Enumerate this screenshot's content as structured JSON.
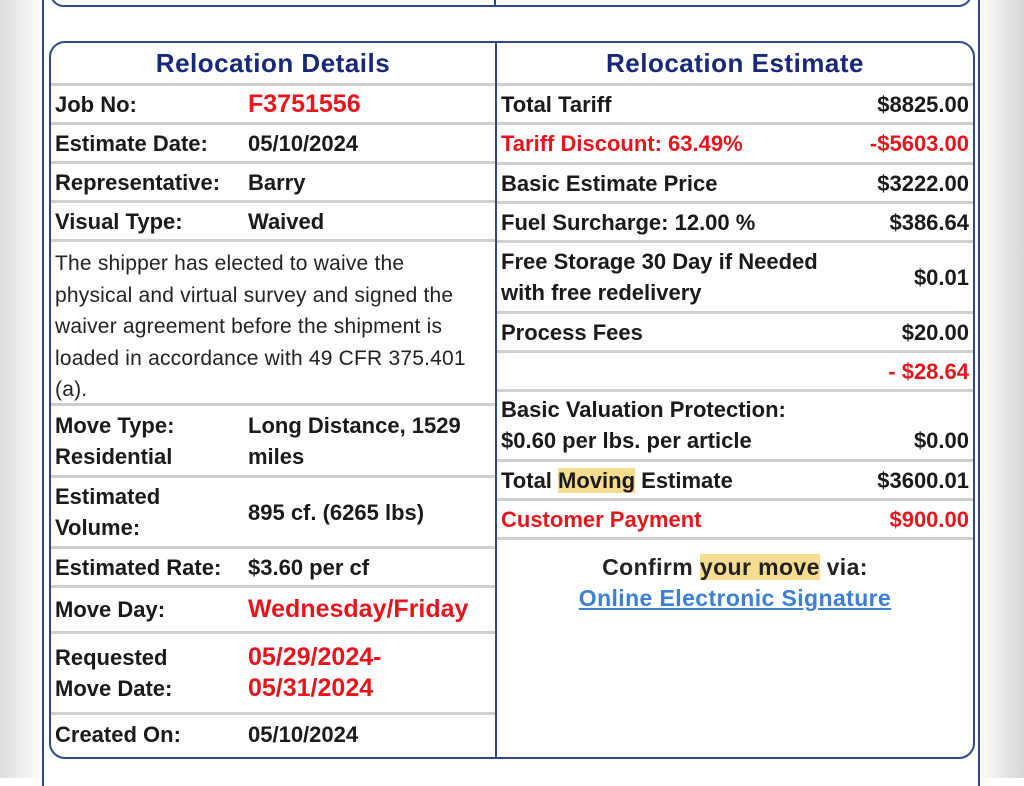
{
  "details": {
    "heading": "Relocation Details",
    "job_no_label": "Job No:",
    "job_no": "F3751556",
    "estimate_date_label": "Estimate Date:",
    "estimate_date": "05/10/2024",
    "representative_label": "Representative:",
    "representative": "Barry",
    "visual_type_label": "Visual Type:",
    "visual_type": "Waived",
    "waiver_note": "The shipper has elected to waive the physical and virtual survey and signed the waiver agreement before the shipment is loaded in accordance with 49 CFR 375.401 (a).",
    "move_type_label_1": "Move Type:",
    "move_type_label_2": "Residential",
    "move_type_value_1": "Long Distance, 1529",
    "move_type_value_2": "miles",
    "volume_label_1": "Estimated",
    "volume_label_2": "Volume:",
    "volume": "895 cf. (6265 lbs)",
    "rate_label": "Estimated Rate:",
    "rate": "$3.60 per cf",
    "move_day_label": "Move Day:",
    "move_day": "Wednesday/Friday",
    "requested_label_1": "Requested",
    "requested_label_2": "Move Date:",
    "requested_value_1": "05/29/2024-",
    "requested_value_2": "05/31/2024",
    "created_label": "Created On:",
    "created": "05/10/2024"
  },
  "estimate": {
    "heading": "Relocation Estimate",
    "total_tariff_label": "Total Tariff",
    "total_tariff": "$8825.00",
    "discount_label": "Tariff Discount: 63.49%",
    "discount": "-$5603.00",
    "basic_price_label": "Basic Estimate Price",
    "basic_price": "$3222.00",
    "fuel_label": "Fuel Surcharge: 12.00 %",
    "fuel": "$386.64",
    "storage_label_1": "Free Storage 30 Day if Needed",
    "storage_label_2": "with free redelivery",
    "storage": "$0.01",
    "process_label": "Process Fees",
    "process": "$20.00",
    "adjustment": "- $28.64",
    "valuation_label_1": "Basic Valuation Protection:",
    "valuation_label_2": "$0.60 per lbs. per article",
    "valuation": "$0.00",
    "total_label_pre": "Total ",
    "total_label_hl": "Moving",
    "total_label_post": " Estimate",
    "total": "$3600.01",
    "payment_label": "Customer Payment",
    "payment": "$900.00",
    "confirm_pre": "Confirm ",
    "confirm_hl": "your move",
    "confirm_post": " via:",
    "signature_link": "Online Electronic Signature"
  },
  "colors": {
    "border": "#2b4a8b",
    "heading": "#18287a",
    "alert_red": "#e8141b",
    "link": "#3b7fd6",
    "highlight": "#f6dc8f"
  }
}
